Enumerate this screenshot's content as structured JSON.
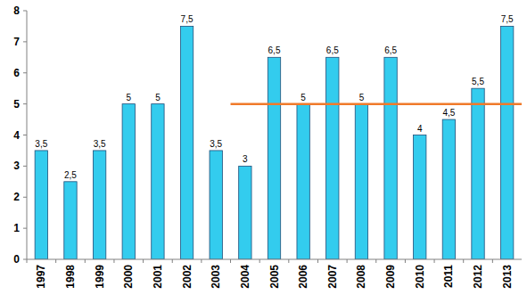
{
  "chart_data": {
    "type": "bar",
    "categories": [
      "1997",
      "1998",
      "1999",
      "2000",
      "2001",
      "2002",
      "2003",
      "2004",
      "2005",
      "2006",
      "2007",
      "2008",
      "2009",
      "2010",
      "2011",
      "2012",
      "2013"
    ],
    "values": [
      3.5,
      2.5,
      3.5,
      5,
      5,
      7.5,
      3.5,
      3,
      6.5,
      5,
      6.5,
      5,
      6.5,
      4,
      4.5,
      5.5,
      7.5
    ],
    "value_labels": [
      "3,5",
      "2,5",
      "3,5",
      "5",
      "5",
      "7,5",
      "3,5",
      "3",
      "6,5",
      "5",
      "6,5",
      "5",
      "6,5",
      "4",
      "4,5",
      "5,5",
      "7,5"
    ],
    "color": "#33ccee",
    "data_labels": true,
    "grid": false,
    "ylim": [
      0,
      8
    ],
    "yticks": [
      0,
      1,
      2,
      3,
      4,
      5,
      6,
      7,
      8
    ],
    "reference_line": {
      "value": 5,
      "start": "2004",
      "color": "#f07a2a"
    }
  }
}
